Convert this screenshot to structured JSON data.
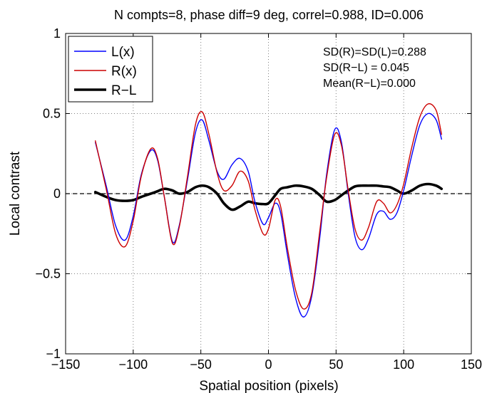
{
  "chart_data": {
    "type": "line",
    "title": "N compts=8, phase diff=9 deg, correl=0.988, ID=0.006",
    "xlabel": "Spatial position (pixels)",
    "ylabel": "Local contrast",
    "xlim": [
      -150,
      150
    ],
    "ylim": [
      -1,
      1
    ],
    "xticks": [
      -150,
      -100,
      -50,
      0,
      50,
      100,
      150
    ],
    "yticks": [
      -1,
      -0.5,
      0,
      0.5,
      1
    ],
    "xtick_labels": [
      "−150",
      "−100",
      "−50",
      "0",
      "50",
      "100",
      "150"
    ],
    "ytick_labels": [
      "−1",
      "−0.5",
      "0",
      "0.5",
      "1"
    ],
    "grid": true,
    "zero_line": "dashed",
    "legend_position": "top-left",
    "annotations": [
      "SD(R)=SD(L)=0.288",
      "SD(R−L) = 0.045",
      "Mean(R−L)=0.000"
    ],
    "series": [
      {
        "name": "L(x)",
        "color": "#0000ff",
        "width": "thin",
        "points": [
          [
            -128,
            0.32
          ],
          [
            -120,
            0.05
          ],
          [
            -113,
            -0.2
          ],
          [
            -106,
            -0.29
          ],
          [
            -100,
            -0.14
          ],
          [
            -94,
            0.12
          ],
          [
            -87,
            0.27
          ],
          [
            -82,
            0.21
          ],
          [
            -77,
            -0.02
          ],
          [
            -71,
            -0.3
          ],
          [
            -66,
            -0.2
          ],
          [
            -60,
            0.08
          ],
          [
            -54,
            0.38
          ],
          [
            -49,
            0.46
          ],
          [
            -44,
            0.33
          ],
          [
            -38,
            0.14
          ],
          [
            -33,
            0.09
          ],
          [
            -27,
            0.18
          ],
          [
            -21,
            0.22
          ],
          [
            -15,
            0.14
          ],
          [
            -10,
            -0.05
          ],
          [
            -4,
            -0.19
          ],
          [
            0,
            -0.15
          ],
          [
            5,
            -0.06
          ],
          [
            9,
            -0.12
          ],
          [
            14,
            -0.38
          ],
          [
            20,
            -0.65
          ],
          [
            26,
            -0.77
          ],
          [
            32,
            -0.64
          ],
          [
            38,
            -0.27
          ],
          [
            43,
            0.12
          ],
          [
            49,
            0.4
          ],
          [
            54,
            0.32
          ],
          [
            59,
            0.0
          ],
          [
            64,
            -0.27
          ],
          [
            69,
            -0.35
          ],
          [
            74,
            -0.28
          ],
          [
            80,
            -0.13
          ],
          [
            85,
            -0.11
          ],
          [
            90,
            -0.16
          ],
          [
            95,
            -0.12
          ],
          [
            100,
            0.02
          ],
          [
            106,
            0.24
          ],
          [
            112,
            0.43
          ],
          [
            118,
            0.5
          ],
          [
            124,
            0.46
          ],
          [
            128,
            0.34
          ]
        ]
      },
      {
        "name": "R(x)",
        "color": "#cc0000",
        "width": "thin",
        "points": [
          [
            -128,
            0.33
          ],
          [
            -120,
            0.03
          ],
          [
            -113,
            -0.25
          ],
          [
            -106,
            -0.33
          ],
          [
            -100,
            -0.17
          ],
          [
            -94,
            0.11
          ],
          [
            -87,
            0.28
          ],
          [
            -82,
            0.22
          ],
          [
            -77,
            -0.02
          ],
          [
            -71,
            -0.31
          ],
          [
            -66,
            -0.21
          ],
          [
            -60,
            0.1
          ],
          [
            -54,
            0.43
          ],
          [
            -49,
            0.51
          ],
          [
            -44,
            0.37
          ],
          [
            -38,
            0.13
          ],
          [
            -33,
            0.02
          ],
          [
            -27,
            0.05
          ],
          [
            -21,
            0.14
          ],
          [
            -15,
            0.08
          ],
          [
            -10,
            -0.1
          ],
          [
            -4,
            -0.25
          ],
          [
            0,
            -0.22
          ],
          [
            5,
            -0.04
          ],
          [
            9,
            -0.08
          ],
          [
            14,
            -0.34
          ],
          [
            20,
            -0.6
          ],
          [
            26,
            -0.72
          ],
          [
            32,
            -0.62
          ],
          [
            38,
            -0.23
          ],
          [
            43,
            0.1
          ],
          [
            49,
            0.37
          ],
          [
            54,
            0.3
          ],
          [
            59,
            0.02
          ],
          [
            64,
            -0.22
          ],
          [
            69,
            -0.29
          ],
          [
            74,
            -0.21
          ],
          [
            80,
            -0.05
          ],
          [
            85,
            -0.06
          ],
          [
            90,
            -0.12
          ],
          [
            95,
            -0.07
          ],
          [
            100,
            0.06
          ],
          [
            106,
            0.29
          ],
          [
            112,
            0.48
          ],
          [
            118,
            0.56
          ],
          [
            124,
            0.52
          ],
          [
            128,
            0.37
          ]
        ]
      },
      {
        "name": "R−L",
        "color": "#000000",
        "width": "thick",
        "points": [
          [
            -128,
            0.01
          ],
          [
            -120,
            -0.02
          ],
          [
            -113,
            -0.04
          ],
          [
            -106,
            -0.045
          ],
          [
            -100,
            -0.04
          ],
          [
            -94,
            -0.02
          ],
          [
            -87,
            0.0
          ],
          [
            -82,
            0.015
          ],
          [
            -77,
            0.03
          ],
          [
            -71,
            0.02
          ],
          [
            -66,
            0.0
          ],
          [
            -60,
            0.01
          ],
          [
            -54,
            0.04
          ],
          [
            -49,
            0.05
          ],
          [
            -44,
            0.04
          ],
          [
            -38,
            0.0
          ],
          [
            -33,
            -0.06
          ],
          [
            -27,
            -0.1
          ],
          [
            -21,
            -0.08
          ],
          [
            -15,
            -0.05
          ],
          [
            -10,
            -0.06
          ],
          [
            -4,
            -0.065
          ],
          [
            0,
            -0.06
          ],
          [
            5,
            -0.01
          ],
          [
            9,
            0.03
          ],
          [
            14,
            0.04
          ],
          [
            20,
            0.05
          ],
          [
            26,
            0.045
          ],
          [
            32,
            0.03
          ],
          [
            38,
            -0.01
          ],
          [
            43,
            -0.05
          ],
          [
            49,
            -0.04
          ],
          [
            54,
            -0.01
          ],
          [
            59,
            0.02
          ],
          [
            64,
            0.045
          ],
          [
            69,
            0.05
          ],
          [
            74,
            0.05
          ],
          [
            80,
            0.05
          ],
          [
            85,
            0.045
          ],
          [
            90,
            0.04
          ],
          [
            95,
            0.02
          ],
          [
            100,
            0.0
          ],
          [
            106,
            0.02
          ],
          [
            112,
            0.05
          ],
          [
            118,
            0.06
          ],
          [
            124,
            0.05
          ],
          [
            128,
            0.03
          ]
        ]
      }
    ]
  }
}
